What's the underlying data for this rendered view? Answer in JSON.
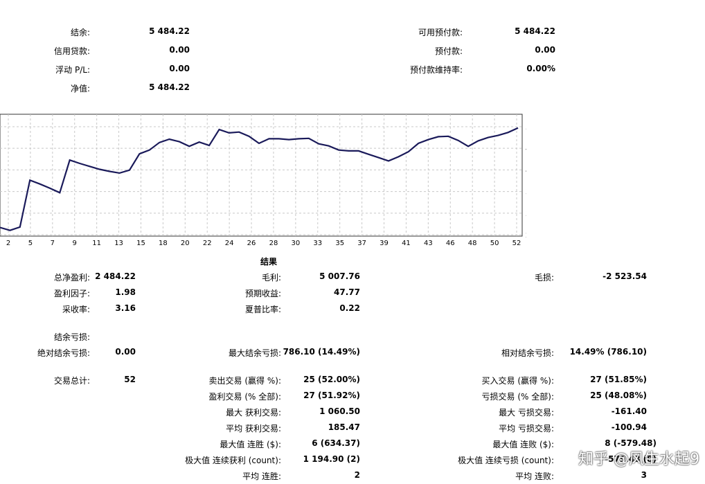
{
  "summary": {
    "balance_label": "结余:",
    "balance": "5 484.22",
    "credit_label": "信用贷款:",
    "credit": "0.00",
    "floating_label": "浮动 P/L:",
    "floating": "0.00",
    "equity_label": "净值:",
    "equity": "5 484.22",
    "free_margin_label": "可用预付款:",
    "free_margin": "5 484.22",
    "margin_label": "预付款:",
    "margin": "0.00",
    "margin_level_label": "预付款维持率:",
    "margin_level": "0.00%"
  },
  "chart_data": {
    "type": "line",
    "x_ticks": [
      "2",
      "5",
      "7",
      "9",
      "11",
      "13",
      "15",
      "18",
      "20",
      "22",
      "24",
      "26",
      "28",
      "30",
      "33",
      "35",
      "37",
      "39",
      "41",
      "43",
      "46",
      "48",
      "50",
      "52"
    ],
    "y_ticks": [
      5458,
      4942,
      4425,
      3909,
      3392,
      2876
    ],
    "ylim": [
      2876,
      5458
    ],
    "xlim": [
      0,
      52
    ],
    "grid": true,
    "series": [
      {
        "color": "#1a1a5a",
        "x": [
          0,
          1,
          2,
          3,
          4,
          5,
          6,
          7,
          8,
          9,
          10,
          11,
          12,
          13,
          14,
          15,
          16,
          17,
          18,
          19,
          20,
          21,
          22,
          23,
          24,
          25,
          26,
          27,
          28,
          29,
          30,
          31,
          32,
          33,
          34,
          35,
          36,
          37,
          38,
          39,
          40,
          41,
          42,
          43,
          44,
          45,
          46,
          47,
          48,
          49,
          50,
          51,
          52
        ],
        "values": [
          3050,
          2980,
          3060,
          4180,
          4090,
          3990,
          3880,
          4660,
          4580,
          4510,
          4440,
          4390,
          4350,
          4420,
          4810,
          4900,
          5080,
          5160,
          5100,
          4990,
          5090,
          5010,
          5390,
          5310,
          5330,
          5230,
          5060,
          5170,
          5170,
          5150,
          5170,
          5180,
          5050,
          5000,
          4900,
          4880,
          4880,
          4800,
          4720,
          4640,
          4740,
          4860,
          5060,
          5150,
          5220,
          5230,
          5130,
          4990,
          5120,
          5200,
          5250,
          5320,
          5430
        ]
      }
    ]
  },
  "results": {
    "title": "结果",
    "total_net_profit_label": "总净盈利:",
    "total_net_profit": "2 484.22",
    "gross_profit_label": "毛利:",
    "gross_profit": "5 007.76",
    "gross_loss_label": "毛损:",
    "gross_loss": "-2 523.54",
    "profit_factor_label": "盈利因子:",
    "profit_factor": "1.98",
    "expected_payoff_label": "预期收益:",
    "expected_payoff": "47.77",
    "recovery_factor_label": "采收率:",
    "recovery_factor": "3.16",
    "sharpe_label": "夏普比率:",
    "sharpe": "0.22",
    "balance_drawdown_label": "结余亏损:",
    "abs_drawdown_label": "绝对结余亏损:",
    "abs_drawdown": "0.00",
    "max_drawdown_label": "最大结余亏损:",
    "max_drawdown": "786.10 (14.49%)",
    "rel_drawdown_label": "相对结余亏损:",
    "rel_drawdown": "14.49% (786.10)",
    "total_trades_label": "交易总计:",
    "total_trades": "52",
    "short_label": "卖出交易 (赢得 %):",
    "short": "25 (52.00%)",
    "long_label": "买入交易 (赢得 %):",
    "long": "27 (51.85%)",
    "profit_trades_label": "盈利交易 (% 全部):",
    "profit_trades": "27 (51.92%)",
    "loss_trades_label": "亏损交易 (% 全部):",
    "loss_trades": "25 (48.08%)",
    "largest_profit_label": "最大 获利交易:",
    "largest_profit": "1 060.50",
    "largest_loss_label": "最大 亏损交易:",
    "largest_loss": "-161.40",
    "avg_profit_label": "平均 获利交易:",
    "avg_profit": "185.47",
    "avg_loss_label": "平均 亏损交易:",
    "avg_loss": "-100.94",
    "max_consec_wins_label": "最大值 连胜 ($):",
    "max_consec_wins": "6 (634.37)",
    "max_consec_losses_label": "最大值 连败 ($):",
    "max_consec_losses": "8 (-579.48)",
    "maximal_consec_profit_label": "极大值 连续获利 (count):",
    "maximal_consec_profit": "1 194.90 (2)",
    "maximal_consec_loss_label": "极大值 连续亏损 (count):",
    "maximal_consec_loss": "-579.48 (8)",
    "avg_consec_wins_label": "平均 连胜:",
    "avg_consec_wins": "2",
    "avg_consec_losses_label": "平均 连败:",
    "avg_consec_losses": "3"
  },
  "watermark": "知乎 @风生水起9"
}
